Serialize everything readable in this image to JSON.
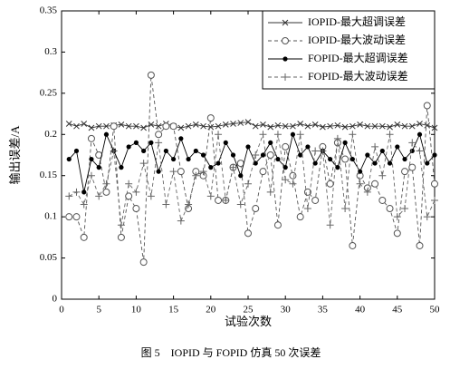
{
  "chart_data": {
    "type": "line",
    "xlabel": "试验次数",
    "ylabel": "输出误差/A",
    "caption": "图 5　IOPID 与 FOPID 仿真 50 次误差",
    "x": [
      1,
      2,
      3,
      4,
      5,
      6,
      7,
      8,
      9,
      10,
      11,
      12,
      13,
      14,
      15,
      16,
      17,
      18,
      19,
      20,
      21,
      22,
      23,
      24,
      25,
      26,
      27,
      28,
      29,
      30,
      31,
      32,
      33,
      34,
      35,
      36,
      37,
      38,
      39,
      40,
      41,
      42,
      43,
      44,
      45,
      46,
      47,
      48,
      49,
      50
    ],
    "xlim": [
      0,
      50
    ],
    "xticks": [
      0,
      5,
      10,
      15,
      20,
      25,
      30,
      35,
      40,
      45,
      50
    ],
    "ylim": [
      0,
      0.35
    ],
    "yticks": [
      0,
      0.05,
      0.1,
      0.15,
      0.2,
      0.25,
      0.3,
      0.35
    ],
    "legend": "upper right",
    "series": [
      {
        "name": "IOPID-最大超调误差",
        "color": "#333333",
        "line_style": "solid",
        "marker": "x",
        "values": [
          0.213,
          0.21,
          0.213,
          0.208,
          0.21,
          0.21,
          0.211,
          0.212,
          0.21,
          0.21,
          0.208,
          0.212,
          0.21,
          0.213,
          0.21,
          0.208,
          0.21,
          0.212,
          0.21,
          0.209,
          0.21,
          0.212,
          0.213,
          0.214,
          0.215,
          0.21,
          0.212,
          0.209,
          0.211,
          0.21,
          0.21,
          0.213,
          0.21,
          0.212,
          0.209,
          0.21,
          0.211,
          0.209,
          0.21,
          0.212,
          0.21,
          0.21,
          0.21,
          0.209,
          0.212,
          0.21,
          0.21,
          0.213,
          0.211,
          0.208
        ]
      },
      {
        "name": "IOPID-最大波动误差",
        "color": "#555555",
        "line_style": "dashed",
        "marker": "circle",
        "values": [
          0.1,
          0.1,
          0.075,
          0.195,
          0.175,
          0.13,
          0.21,
          0.075,
          0.125,
          0.11,
          0.045,
          0.272,
          0.2,
          0.21,
          0.21,
          0.155,
          0.11,
          0.155,
          0.15,
          0.22,
          0.12,
          0.12,
          0.16,
          0.165,
          0.08,
          0.11,
          0.155,
          0.175,
          0.09,
          0.185,
          0.15,
          0.1,
          0.13,
          0.12,
          0.185,
          0.14,
          0.19,
          0.17,
          0.065,
          0.15,
          0.135,
          0.14,
          0.12,
          0.11,
          0.08,
          0.155,
          0.16,
          0.065,
          0.235,
          0.14
        ]
      },
      {
        "name": "FOPID-最大超调误差",
        "color": "#000000",
        "line_style": "solid",
        "marker": "dot",
        "values": [
          0.17,
          0.18,
          0.13,
          0.17,
          0.16,
          0.2,
          0.18,
          0.16,
          0.185,
          0.19,
          0.18,
          0.19,
          0.155,
          0.18,
          0.17,
          0.195,
          0.17,
          0.18,
          0.175,
          0.16,
          0.165,
          0.19,
          0.175,
          0.15,
          0.185,
          0.165,
          0.175,
          0.19,
          0.17,
          0.16,
          0.2,
          0.175,
          0.185,
          0.165,
          0.18,
          0.17,
          0.16,
          0.19,
          0.17,
          0.155,
          0.175,
          0.165,
          0.18,
          0.165,
          0.185,
          0.17,
          0.18,
          0.2,
          0.165,
          0.175
        ]
      },
      {
        "name": "FOPID-最大波动误差",
        "color": "#666666",
        "line_style": "dashed",
        "marker": "plus",
        "values": [
          0.125,
          0.13,
          0.115,
          0.15,
          0.125,
          0.14,
          0.18,
          0.09,
          0.14,
          0.13,
          0.165,
          0.125,
          0.19,
          0.115,
          0.155,
          0.095,
          0.115,
          0.15,
          0.155,
          0.125,
          0.2,
          0.12,
          0.16,
          0.115,
          0.14,
          0.175,
          0.2,
          0.13,
          0.2,
          0.145,
          0.14,
          0.2,
          0.11,
          0.18,
          0.18,
          0.09,
          0.195,
          0.11,
          0.2,
          0.14,
          0.13,
          0.185,
          0.15,
          0.2,
          0.1,
          0.11,
          0.19,
          0.18,
          0.1,
          0.12
        ]
      }
    ]
  }
}
